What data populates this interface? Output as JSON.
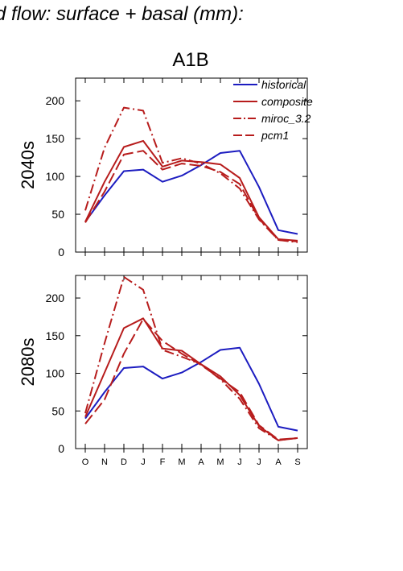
{
  "figure_title": "d flow: surface + basal (mm):",
  "colors": {
    "historical": "#1c1cc0",
    "future": "#b71c1c",
    "axis": "#000000"
  },
  "chart_data": [
    {
      "type": "line",
      "title": "A1B",
      "ylabel": "2040s",
      "categories": [
        "O",
        "N",
        "D",
        "J",
        "F",
        "M",
        "A",
        "M",
        "J",
        "J",
        "A",
        "S"
      ],
      "ylim": [
        0,
        230
      ],
      "yticks": [
        0,
        50,
        100,
        150,
        200
      ],
      "legend_position": "top-right",
      "series": [
        {
          "name": "historical",
          "color": "#1c1cc0",
          "dash": "solid",
          "values": [
            40,
            75,
            107,
            109,
            93,
            101,
            115,
            131,
            134,
            86,
            29,
            24
          ]
        },
        {
          "name": "composite",
          "color": "#b71c1c",
          "dash": "solid",
          "values": [
            40,
            93,
            139,
            147,
            113,
            121,
            119,
            116,
            98,
            46,
            17,
            15
          ]
        },
        {
          "name": "miroc_3.2",
          "color": "#b71c1c",
          "dash": "dashdot",
          "values": [
            55,
            138,
            191,
            187,
            118,
            124,
            117,
            104,
            84,
            43,
            16,
            13
          ]
        },
        {
          "name": "pcm1",
          "color": "#b71c1c",
          "dash": "dashed",
          "values": [
            39,
            80,
            129,
            134,
            109,
            117,
            114,
            106,
            90,
            44,
            16,
            14
          ]
        }
      ]
    },
    {
      "type": "line",
      "title": "",
      "ylabel": "2080s",
      "categories": [
        "O",
        "N",
        "D",
        "J",
        "F",
        "M",
        "A",
        "M",
        "J",
        "J",
        "A",
        "S"
      ],
      "ylim": [
        0,
        230
      ],
      "yticks": [
        0,
        50,
        100,
        150,
        200
      ],
      "series": [
        {
          "name": "historical",
          "color": "#1c1cc0",
          "dash": "solid",
          "values": [
            40,
            75,
            107,
            109,
            93,
            101,
            115,
            131,
            134,
            86,
            29,
            24
          ]
        },
        {
          "name": "composite",
          "color": "#b71c1c",
          "dash": "solid",
          "values": [
            42,
            101,
            160,
            173,
            133,
            130,
            112,
            96,
            71,
            30,
            11,
            14
          ]
        },
        {
          "name": "miroc_3.2",
          "color": "#b71c1c",
          "dash": "dashdot",
          "values": [
            47,
            140,
            228,
            211,
            131,
            122,
            112,
            92,
            66,
            27,
            11,
            14
          ]
        },
        {
          "name": "pcm1",
          "color": "#b71c1c",
          "dash": "dashed",
          "values": [
            33,
            65,
            126,
            172,
            143,
            126,
            111,
            93,
            75,
            31,
            12,
            14
          ]
        }
      ]
    }
  ]
}
